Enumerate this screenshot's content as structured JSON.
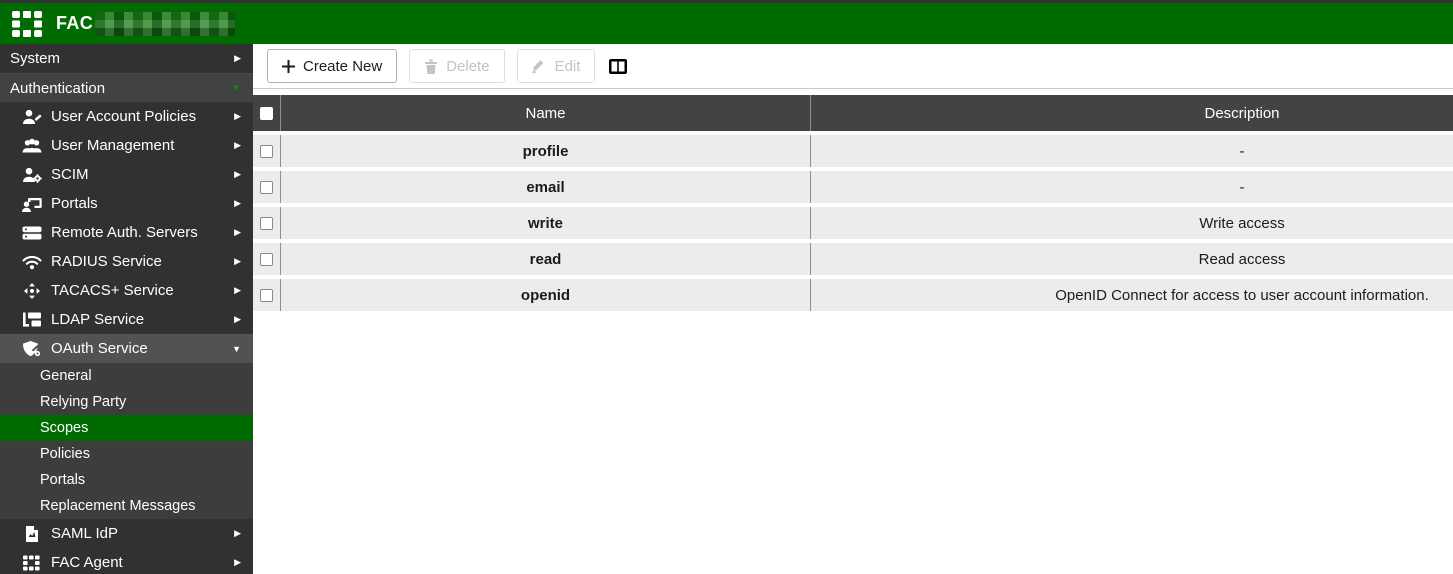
{
  "topbar": {
    "brand": "FAC",
    "logo_icon": "fortinet-grid-icon",
    "redacted_text": ""
  },
  "sidebar": {
    "categories": [
      {
        "label": "System",
        "state": "collapsed"
      },
      {
        "label": "Authentication",
        "state": "expanded"
      }
    ],
    "items": [
      {
        "label": "User Account Policies",
        "icon": "user-edit-icon",
        "state": "collapsed"
      },
      {
        "label": "User Management",
        "icon": "users-icon",
        "state": "collapsed"
      },
      {
        "label": "SCIM",
        "icon": "user-gear-icon",
        "state": "collapsed"
      },
      {
        "label": "Portals",
        "icon": "user-window-icon",
        "state": "collapsed"
      },
      {
        "label": "Remote Auth. Servers",
        "icon": "servers-icon",
        "state": "collapsed"
      },
      {
        "label": "RADIUS Service",
        "icon": "wifi-icon",
        "state": "collapsed"
      },
      {
        "label": "TACACS+ Service",
        "icon": "cross-arrows-icon",
        "state": "collapsed"
      },
      {
        "label": "LDAP Service",
        "icon": "tree-icon",
        "state": "collapsed"
      },
      {
        "label": "OAuth Service",
        "icon": "shield-icon",
        "state": "expanded",
        "children": [
          {
            "label": "General",
            "selected": false
          },
          {
            "label": "Relying Party",
            "selected": false
          },
          {
            "label": "Scopes",
            "selected": true
          },
          {
            "label": "Policies",
            "selected": false
          },
          {
            "label": "Portals",
            "selected": false
          },
          {
            "label": "Replacement Messages",
            "selected": false
          }
        ]
      },
      {
        "label": "SAML IdP",
        "icon": "document-icon",
        "state": "collapsed"
      },
      {
        "label": "FAC Agent",
        "icon": "grid-icon",
        "state": "collapsed"
      }
    ]
  },
  "toolbar": {
    "create_new_label": "Create New",
    "delete_label": "Delete",
    "edit_label": "Edit",
    "delete_enabled": false,
    "edit_enabled": false,
    "columns_icon": "columns-icon"
  },
  "table": {
    "columns": [
      "Name",
      "Description"
    ],
    "rows": [
      {
        "name": "profile",
        "description": "-",
        "checked": false
      },
      {
        "name": "email",
        "description": "-",
        "checked": false
      },
      {
        "name": "write",
        "description": "Write access",
        "checked": false
      },
      {
        "name": "read",
        "description": "Read access",
        "checked": false
      },
      {
        "name": "openid",
        "description": "OpenID Connect for access to user account information.",
        "checked": false
      }
    ]
  },
  "colors": {
    "brand_green": "#006b00",
    "caret_green": "#0d870d",
    "sidebar_bg": "#313131",
    "table_header_bg": "#434343",
    "row_bg": "#ececec"
  }
}
